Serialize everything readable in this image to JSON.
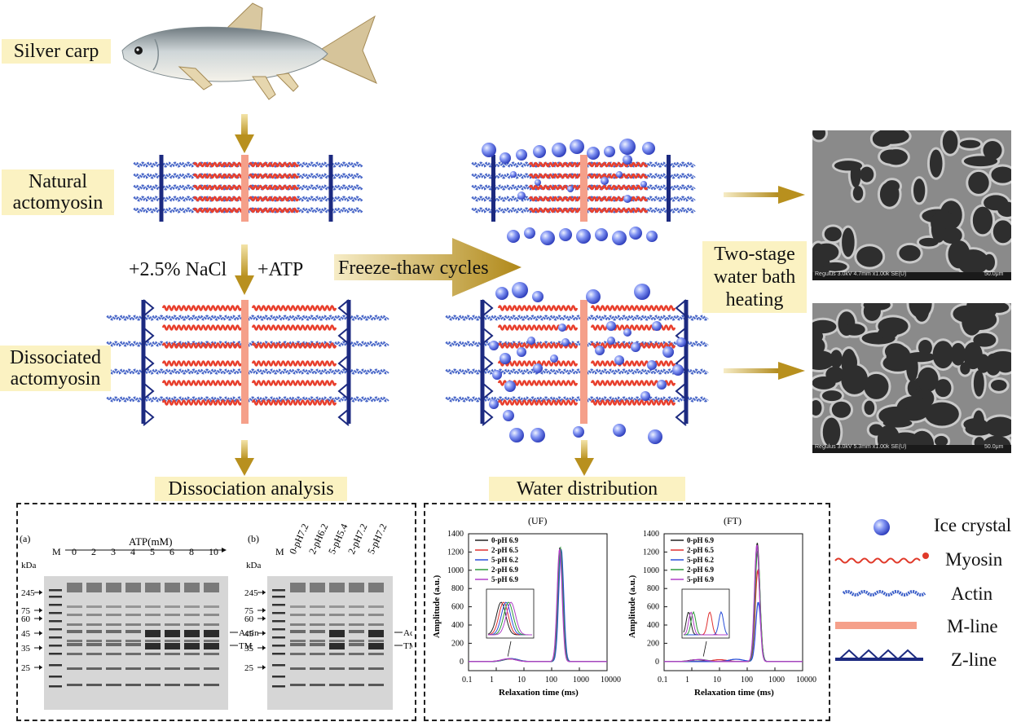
{
  "labels": {
    "silver_carp": "Silver carp",
    "natural_actomyosin": "Natural actomyosin",
    "dissociated_actomyosin": "Dissociated actomyosin",
    "nacl": "+2.5% NaCl",
    "atp": "+ATP",
    "freeze_thaw": "Freeze-thaw cycles",
    "two_stage": "Two-stage water bath heating",
    "dissociation_analysis": "Dissociation analysis",
    "water_distribution": "Water distribution"
  },
  "gel_a": {
    "panel": "(a)",
    "header": "ATP(mM)",
    "kda": "kDa",
    "lanes": [
      "M",
      "0",
      "2",
      "3",
      "4",
      "5",
      "6",
      "8",
      "10"
    ],
    "markers": [
      "245",
      "75",
      "60",
      "45",
      "35",
      "25"
    ],
    "band_labels": [
      "Actin",
      "TM"
    ]
  },
  "gel_b": {
    "panel": "(b)",
    "kda": "kDa",
    "lanes": [
      "M",
      "0-pH7.2",
      "2-pH6.2",
      "5-pH5.4",
      "2-pH7.2",
      "5-pH7.2"
    ],
    "markers": [
      "245",
      "75",
      "60",
      "45",
      "35",
      "25"
    ],
    "band_labels": [
      "Actin",
      "TM"
    ]
  },
  "legend": [
    {
      "name": "Ice crystal"
    },
    {
      "name": "Myosin"
    },
    {
      "name": "Actin"
    },
    {
      "name": "M-line"
    },
    {
      "name": "Z-line"
    }
  ],
  "sem": {
    "top_caption": "Regulus 3.0kV 4.7mm x1.00k SE(U)",
    "top_scale": "50.0μm",
    "bottom_caption": "Regulus 3.0kV 5.3mm x1.00k SE(U)",
    "bottom_scale": "50.0μm"
  },
  "chart_data": [
    {
      "type": "line",
      "title": "(UF)",
      "xlabel": "Relaxation time (ms)",
      "ylabel": "Amplitude (a.u.)",
      "xscale": "log",
      "xlim": [
        0.1,
        10000
      ],
      "ylim": [
        -100,
        1400
      ],
      "xticks": [
        "0.1",
        "1",
        "10",
        "100",
        "1000",
        "10000"
      ],
      "yticks": [
        "0",
        "200",
        "400",
        "600",
        "800",
        "1000",
        "1200",
        "1400"
      ],
      "legend_position": "top-left",
      "series": [
        {
          "name": "0-pH 6.9",
          "color": "#222222",
          "peaks": [
            {
              "x": 200,
              "y": 1250
            },
            {
              "x": 3,
              "y": 30
            }
          ]
        },
        {
          "name": "2-pH 6.5",
          "color": "#e03030",
          "peaks": [
            {
              "x": 210,
              "y": 1240
            },
            {
              "x": 3.2,
              "y": 28
            }
          ]
        },
        {
          "name": "5-pH 6.2",
          "color": "#2a4fd8",
          "peaks": [
            {
              "x": 220,
              "y": 1230
            },
            {
              "x": 3.5,
              "y": 32
            }
          ]
        },
        {
          "name": "2-pH 6.9",
          "color": "#2c9a3a",
          "peaks": [
            {
              "x": 205,
              "y": 1245
            },
            {
              "x": 3.1,
              "y": 30
            }
          ]
        },
        {
          "name": "5-pH 6.9",
          "color": "#b040c8",
          "peaks": [
            {
              "x": 195,
              "y": 1235
            },
            {
              "x": 2.8,
              "y": 31
            }
          ]
        }
      ]
    },
    {
      "type": "line",
      "title": "(FT)",
      "xlabel": "Relaxation time (ms)",
      "ylabel": "Amplitude (a.u.)",
      "xscale": "log",
      "xlim": [
        0.1,
        10000
      ],
      "ylim": [
        -100,
        1400
      ],
      "xticks": [
        "0.1",
        "1",
        "10",
        "100",
        "1000",
        "10000"
      ],
      "yticks": [
        "0",
        "200",
        "400",
        "600",
        "800",
        "1000",
        "1200",
        "1400"
      ],
      "legend_position": "top-left",
      "series": [
        {
          "name": "0-pH 6.9",
          "color": "#222222",
          "peaks": [
            {
              "x": 230,
              "y": 1300
            },
            {
              "x": 1.5,
              "y": 20
            }
          ]
        },
        {
          "name": "2-pH 6.5",
          "color": "#e03030",
          "peaks": [
            {
              "x": 240,
              "y": 1000
            },
            {
              "x": 10,
              "y": 20
            }
          ]
        },
        {
          "name": "5-pH 6.2",
          "color": "#2a4fd8",
          "peaks": [
            {
              "x": 250,
              "y": 650
            },
            {
              "x": 40,
              "y": 25
            }
          ]
        },
        {
          "name": "2-pH 6.9",
          "color": "#2c9a3a",
          "peaks": [
            {
              "x": 235,
              "y": 1200
            },
            {
              "x": 2,
              "y": 22
            }
          ]
        },
        {
          "name": "5-pH 6.9",
          "color": "#b040c8",
          "peaks": [
            {
              "x": 225,
              "y": 1280
            },
            {
              "x": 1.8,
              "y": 22
            }
          ]
        }
      ]
    }
  ]
}
